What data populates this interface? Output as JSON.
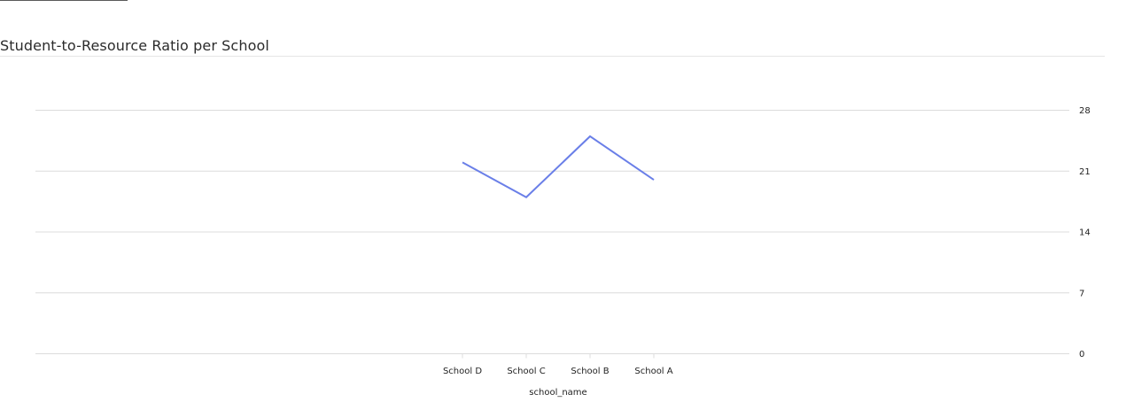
{
  "chart_data": {
    "type": "line",
    "title": "Student-to-Resource Ratio per School",
    "xlabel": "school_name",
    "ylabel": "",
    "categories": [
      "School D",
      "School C",
      "School B",
      "School A"
    ],
    "series": [
      {
        "values": [
          22,
          18,
          25,
          20
        ]
      }
    ],
    "ylim": [
      0,
      28
    ],
    "yticks": [
      0,
      7,
      14,
      21,
      28
    ],
    "y_axis_side": "right",
    "grid": true,
    "line_color": "#6a7fe8",
    "grid_color": "#dcdcdc"
  }
}
